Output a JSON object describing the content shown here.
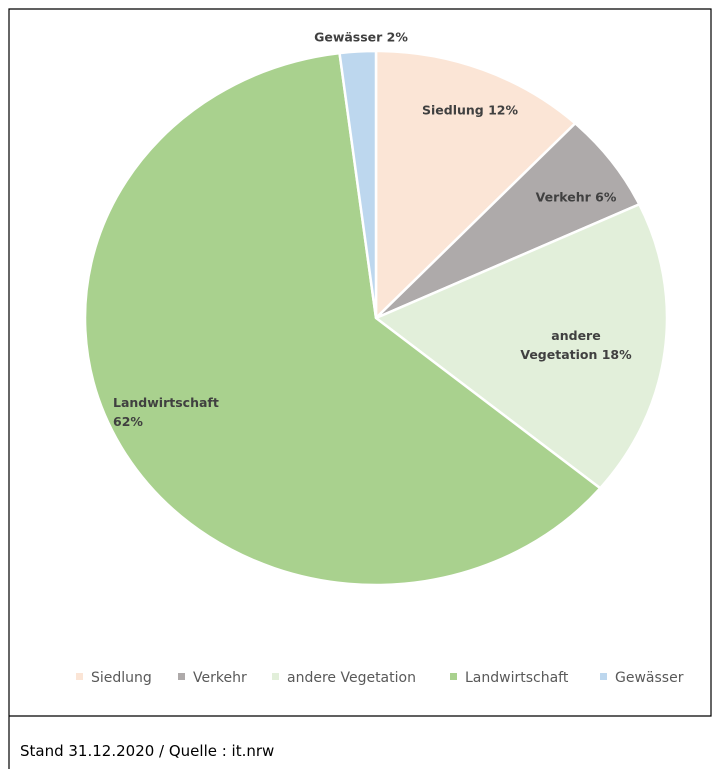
{
  "chart_data": {
    "type": "pie",
    "categories": [
      "Siedlung",
      "Verkehr",
      "andere Vegetation",
      "Landwirtschaft",
      "Gewässer"
    ],
    "values": [
      12,
      6,
      18,
      62,
      2
    ],
    "value_labels": [
      "Siedlung 12%",
      "Verkehr 6%",
      "andere\nVegetation 18%",
      "Landwirtschaft\n62%",
      "Gewässer 2%"
    ],
    "colors": [
      "#fbe5d6",
      "#aeaaaa",
      "#e2efda",
      "#a9d18e",
      "#bdd7ee"
    ],
    "legend": "bottom",
    "footnote": "Stand 31.12.2020 / Quelle : it.nrw"
  }
}
